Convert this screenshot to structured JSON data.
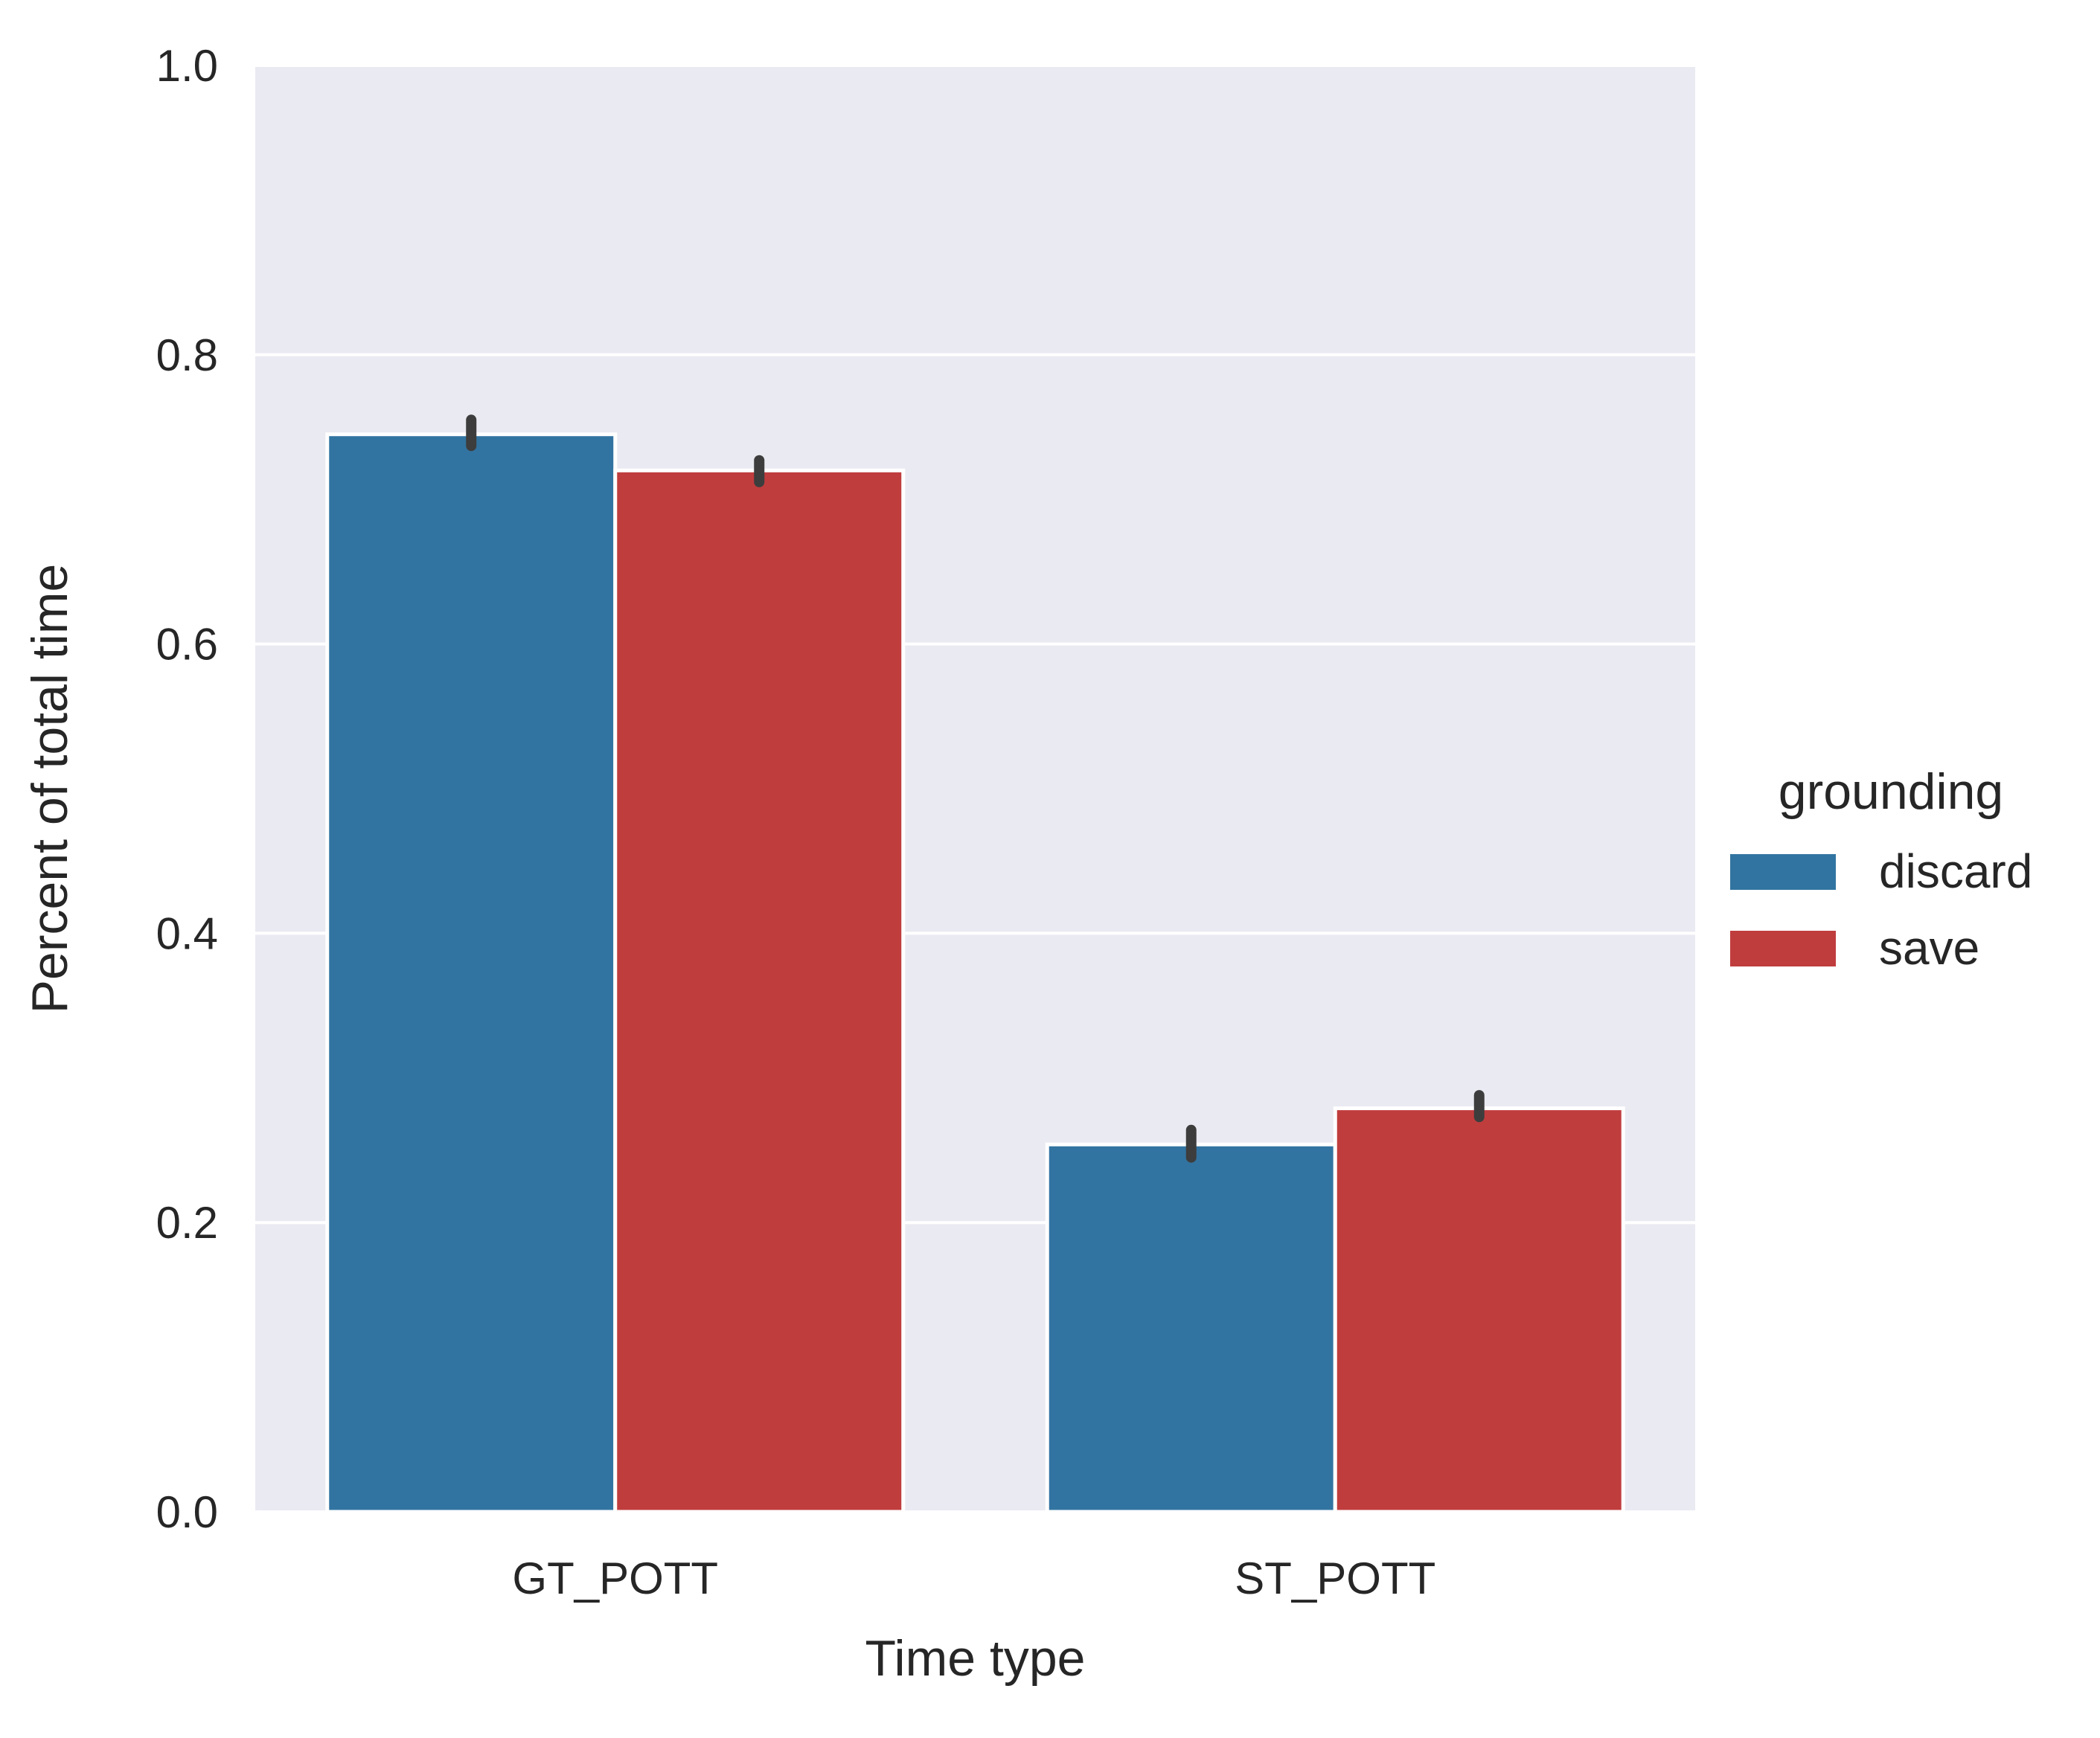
{
  "chart_data": {
    "type": "bar",
    "categories": [
      "GT_POTT",
      "ST_POTT"
    ],
    "series": [
      {
        "name": "discard",
        "color": "#3274A1",
        "values": [
          0.745,
          0.254
        ],
        "error_low": [
          0.737,
          0.245
        ],
        "error_high": [
          0.755,
          0.264
        ]
      },
      {
        "name": "save",
        "color": "#C03D3E",
        "values": [
          0.72,
          0.279
        ],
        "error_low": [
          0.712,
          0.273
        ],
        "error_high": [
          0.727,
          0.288
        ]
      }
    ],
    "title": "",
    "xlabel": "Time type",
    "ylabel": "Percent of total time",
    "ylim": [
      0,
      1.0
    ],
    "yticks": [
      0.0,
      0.2,
      0.4,
      0.6,
      0.8,
      1.0
    ],
    "ytick_labels": [
      "0.0",
      "0.2",
      "0.4",
      "0.6",
      "0.8",
      "1.0"
    ],
    "grid": true,
    "legend": {
      "title": "grounding",
      "placement": "right"
    },
    "background_color": "#EAEAF2",
    "errorbar_color": "#3D3D3D"
  }
}
